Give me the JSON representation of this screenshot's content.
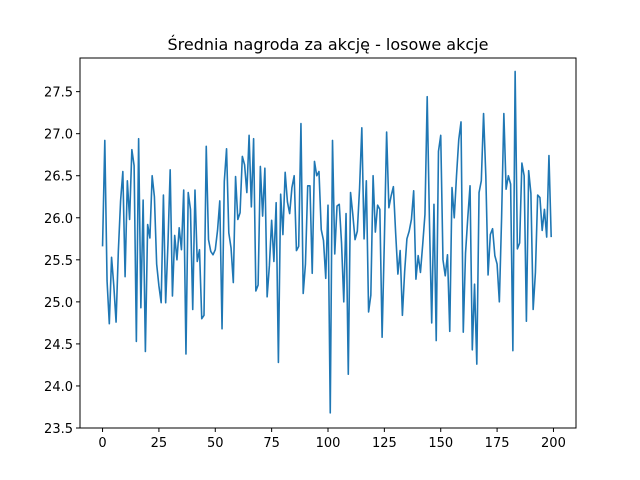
{
  "chart_data": {
    "type": "line",
    "title": "Średnia nagroda za akcję - losowe akcje",
    "xlabel": "",
    "ylabel": "",
    "xlim": [
      -10,
      210
    ],
    "ylim": [
      23.5,
      27.9
    ],
    "xticks": [
      0,
      25,
      50,
      75,
      100,
      125,
      150,
      175,
      200
    ],
    "yticks": [
      23.5,
      24.0,
      24.5,
      25.0,
      25.5,
      26.0,
      26.5,
      27.0,
      27.5
    ],
    "ytick_labels": [
      "23.5",
      "24.0",
      "24.5",
      "25.0",
      "25.5",
      "26.0",
      "26.5",
      "27.0",
      "27.5"
    ],
    "grid": false,
    "series": [
      {
        "color": "#1f77b4",
        "x_start": 0,
        "x_step": 1,
        "values": [
          25.66,
          26.92,
          25.25,
          24.74,
          25.53,
          25.19,
          24.76,
          25.6,
          26.2,
          26.55,
          25.3,
          26.44,
          25.98,
          26.81,
          26.62,
          24.53,
          26.94,
          24.93,
          26.21,
          24.41,
          25.92,
          25.76,
          26.5,
          26.25,
          25.45,
          25.19,
          24.99,
          26.27,
          24.99,
          25.68,
          26.57,
          25.07,
          25.79,
          25.5,
          25.88,
          25.62,
          26.33,
          24.38,
          26.3,
          26.1,
          24.91,
          26.33,
          25.48,
          25.62,
          24.8,
          24.84,
          26.85,
          25.74,
          25.6,
          25.56,
          25.62,
          25.85,
          26.2,
          24.68,
          26.43,
          26.82,
          25.82,
          25.64,
          25.23,
          26.49,
          25.98,
          26.06,
          26.73,
          26.63,
          26.3,
          26.98,
          26.13,
          26.94,
          25.13,
          25.2,
          26.61,
          26.02,
          26.59,
          25.06,
          25.43,
          25.97,
          25.48,
          26.18,
          24.28,
          26.28,
          25.8,
          26.54,
          26.19,
          26.05,
          26.36,
          26.5,
          25.61,
          25.66,
          27.12,
          25.1,
          25.45,
          26.38,
          26.38,
          25.34,
          26.67,
          26.5,
          26.55,
          25.86,
          25.73,
          25.28,
          26.15,
          23.68,
          26.92,
          25.57,
          26.14,
          26.16,
          25.7,
          25.0,
          26.05,
          24.14,
          26.3,
          26.04,
          25.74,
          25.84,
          26.35,
          27.07,
          25.75,
          26.44,
          24.88,
          25.08,
          26.5,
          25.83,
          26.15,
          26.1,
          24.58,
          25.73,
          27.02,
          26.12,
          26.26,
          26.37,
          25.82,
          25.33,
          25.61,
          24.84,
          25.36,
          25.75,
          25.84,
          25.98,
          26.32,
          25.27,
          25.55,
          25.35,
          25.68,
          26.04,
          27.44,
          25.96,
          24.75,
          26.16,
          24.54,
          26.79,
          26.98,
          25.5,
          25.31,
          25.56,
          24.65,
          26.36,
          26.0,
          26.5,
          26.93,
          27.14,
          24.64,
          25.58,
          26.0,
          26.38,
          24.43,
          25.21,
          24.26,
          26.3,
          26.44,
          27.24,
          26.5,
          25.32,
          25.8,
          25.87,
          25.55,
          25.45,
          25.0,
          26.0,
          27.24,
          26.34,
          26.5,
          26.4,
          24.42,
          27.74,
          25.63,
          25.7,
          26.65,
          26.5,
          24.77,
          26.56,
          26.29,
          24.91,
          25.35,
          26.27,
          26.24,
          25.85,
          26.1,
          25.77,
          26.74,
          25.77
        ]
      }
    ]
  }
}
